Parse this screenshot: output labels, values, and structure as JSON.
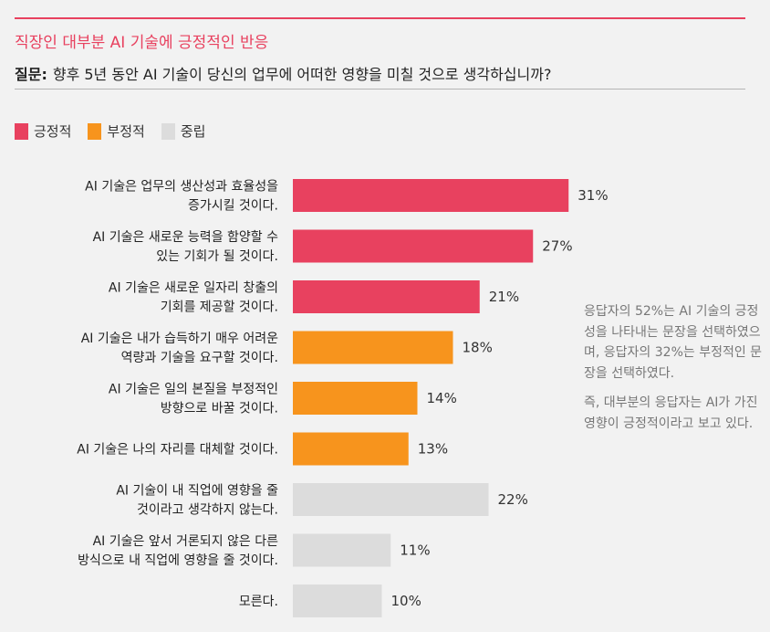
{
  "header": {
    "title": "직장인 대부분 AI 기술에 긍정적인 반응",
    "question_label": "질문:",
    "question": "향후 5년 동안 AI 기술이 당신의 업무에 어떠한 영향을 미칠 것으로 생각하십니까?"
  },
  "colors": {
    "positive": "#e8415f",
    "negative": "#f7941d",
    "neutral": "#dcdcdc"
  },
  "note": {
    "p1": "응답자의 52%는 AI 기술의 긍정성을 나타내는 문장을 선택하였으며, 응답자의 32%는 부정적인 문장을 선택하였다.",
    "p2": "즉, 대부분의 응답자는 AI가 가진 영향이 긍정적이라고 보고 있다."
  },
  "chart_data": {
    "type": "bar",
    "orientation": "horizontal",
    "legend": [
      {
        "key": "positive",
        "label": "긍정적"
      },
      {
        "key": "negative",
        "label": "부정적"
      },
      {
        "key": "neutral",
        "label": "중립"
      }
    ],
    "legend_position": "top-left",
    "grid": false,
    "unit": "%",
    "xlim": [
      0,
      31
    ],
    "bars": [
      {
        "label": [
          "AI 기술은 업무의 생산성과 효율성을",
          "증가시킬 것이다."
        ],
        "value": 31,
        "group": "positive"
      },
      {
        "label": [
          "AI 기술은 새로운 능력을 함양할 수",
          "있는 기회가 될 것이다."
        ],
        "value": 27,
        "group": "positive"
      },
      {
        "label": [
          "AI 기술은 새로운 일자리 창출의",
          "기회를 제공할 것이다."
        ],
        "value": 21,
        "group": "positive"
      },
      {
        "label": [
          "AI 기술은 내가 습득하기 매우 어려운",
          "역량과 기술을 요구할 것이다."
        ],
        "value": 18,
        "group": "negative"
      },
      {
        "label": [
          "AI 기술은 일의 본질을 부정적인",
          "방향으로 바꿀 것이다."
        ],
        "value": 14,
        "group": "negative"
      },
      {
        "label": [
          "AI 기술은 나의 자리를 대체할 것이다."
        ],
        "value": 13,
        "group": "negative"
      },
      {
        "label": [
          "AI 기술이 내 직업에 영향을 줄",
          "것이라고 생각하지 않는다."
        ],
        "value": 22,
        "group": "neutral"
      },
      {
        "label": [
          "AI 기술은 앞서 거론되지 않은 다른",
          "방식으로 내 직업에 영향을 줄 것이다."
        ],
        "value": 11,
        "group": "neutral"
      },
      {
        "label": [
          "모른다."
        ],
        "value": 10,
        "group": "neutral"
      }
    ]
  }
}
